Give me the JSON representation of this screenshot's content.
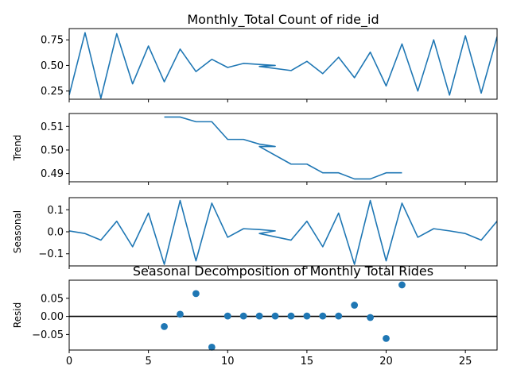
{
  "figure": {
    "title": "Monthly_Total Count of ride_id",
    "overlay_title": "Seasonal Decomposition of Monthly Total Rides"
  },
  "chart_data": [
    {
      "type": "line",
      "panel": "observed",
      "ylabel": "",
      "xlim": [
        0,
        27
      ],
      "ylim": [
        0.17,
        0.86
      ],
      "yticks": [
        0.25,
        0.5,
        0.75
      ],
      "ytick_labels": [
        "0.25",
        "0.50",
        "0.75"
      ],
      "x": [
        0,
        1,
        2,
        3,
        4,
        5,
        6,
        7,
        8,
        9,
        10,
        11,
        12,
        13,
        12,
        14,
        15,
        16,
        17,
        18,
        19,
        20,
        21,
        22,
        23,
        24,
        25,
        26,
        27
      ],
      "y": [
        0.21,
        0.82,
        0.18,
        0.81,
        0.32,
        0.69,
        0.34,
        0.66,
        0.44,
        0.56,
        0.48,
        0.52,
        0.51,
        0.5,
        0.49,
        0.45,
        0.54,
        0.42,
        0.58,
        0.38,
        0.63,
        0.3,
        0.71,
        0.25,
        0.75,
        0.21,
        0.79,
        0.23,
        0.78
      ],
      "color": "#1f77b4"
    },
    {
      "type": "line",
      "panel": "trend",
      "ylabel": "Trend",
      "xlim": [
        0,
        27
      ],
      "ylim": [
        0.4865,
        0.5155
      ],
      "yticks": [
        0.49,
        0.5,
        0.51
      ],
      "ytick_labels": [
        "0.49",
        "0.50",
        "0.51"
      ],
      "x": [
        6,
        7,
        8,
        9,
        10,
        11,
        12,
        13,
        12,
        14,
        15,
        16,
        17,
        18,
        19,
        20,
        21
      ],
      "y": [
        0.514,
        0.514,
        0.512,
        0.512,
        0.5045,
        0.5045,
        0.5025,
        0.5015,
        0.5015,
        0.494,
        0.494,
        0.4903,
        0.4903,
        0.4877,
        0.4877,
        0.4903,
        0.4903
      ],
      "color": "#1f77b4"
    },
    {
      "type": "line",
      "panel": "seasonal",
      "ylabel": "Seasonal",
      "xlim": [
        0,
        27
      ],
      "ylim": [
        -0.155,
        0.155
      ],
      "yticks": [
        -0.1,
        0.0,
        0.1
      ],
      "ytick_labels": [
        "−0.1",
        "0.0",
        "0.1"
      ],
      "x": [
        0,
        1,
        2,
        3,
        4,
        5,
        6,
        7,
        8,
        9,
        10,
        11,
        12,
        13,
        12,
        14,
        15,
        16,
        17,
        18,
        19,
        20,
        21,
        22,
        23,
        24,
        25,
        26,
        27
      ],
      "y": [
        0.004,
        -0.008,
        -0.038,
        0.048,
        -0.068,
        0.085,
        -0.148,
        0.142,
        -0.132,
        0.13,
        -0.025,
        0.014,
        0.01,
        0.004,
        -0.008,
        -0.038,
        0.048,
        -0.068,
        0.085,
        -0.148,
        0.142,
        -0.132,
        0.13,
        -0.025,
        0.014,
        0.004,
        -0.008,
        -0.038,
        0.048
      ],
      "color": "#1f77b4"
    },
    {
      "type": "scatter",
      "panel": "resid",
      "ylabel": "Resid",
      "xlim": [
        0,
        27
      ],
      "ylim": [
        -0.093,
        0.1
      ],
      "yticks": [
        -0.05,
        0.0,
        0.05
      ],
      "ytick_labels": [
        "−0.05",
        "0.00",
        "0.05"
      ],
      "xticks": [
        0,
        5,
        10,
        15,
        20,
        25
      ],
      "xtick_labels": [
        "0",
        "5",
        "10",
        "15",
        "20",
        "25"
      ],
      "baseline": 0,
      "x": [
        6,
        7,
        8,
        9,
        10,
        11,
        12,
        13,
        14,
        15,
        16,
        17,
        18,
        19,
        20,
        21
      ],
      "y": [
        -0.028,
        0.006,
        0.063,
        -0.085,
        0.001,
        0.001,
        0.001,
        0.001,
        0.001,
        0.001,
        0.001,
        0.001,
        0.031,
        -0.003,
        -0.061,
        0.087
      ],
      "color": "#1f77b4"
    }
  ]
}
